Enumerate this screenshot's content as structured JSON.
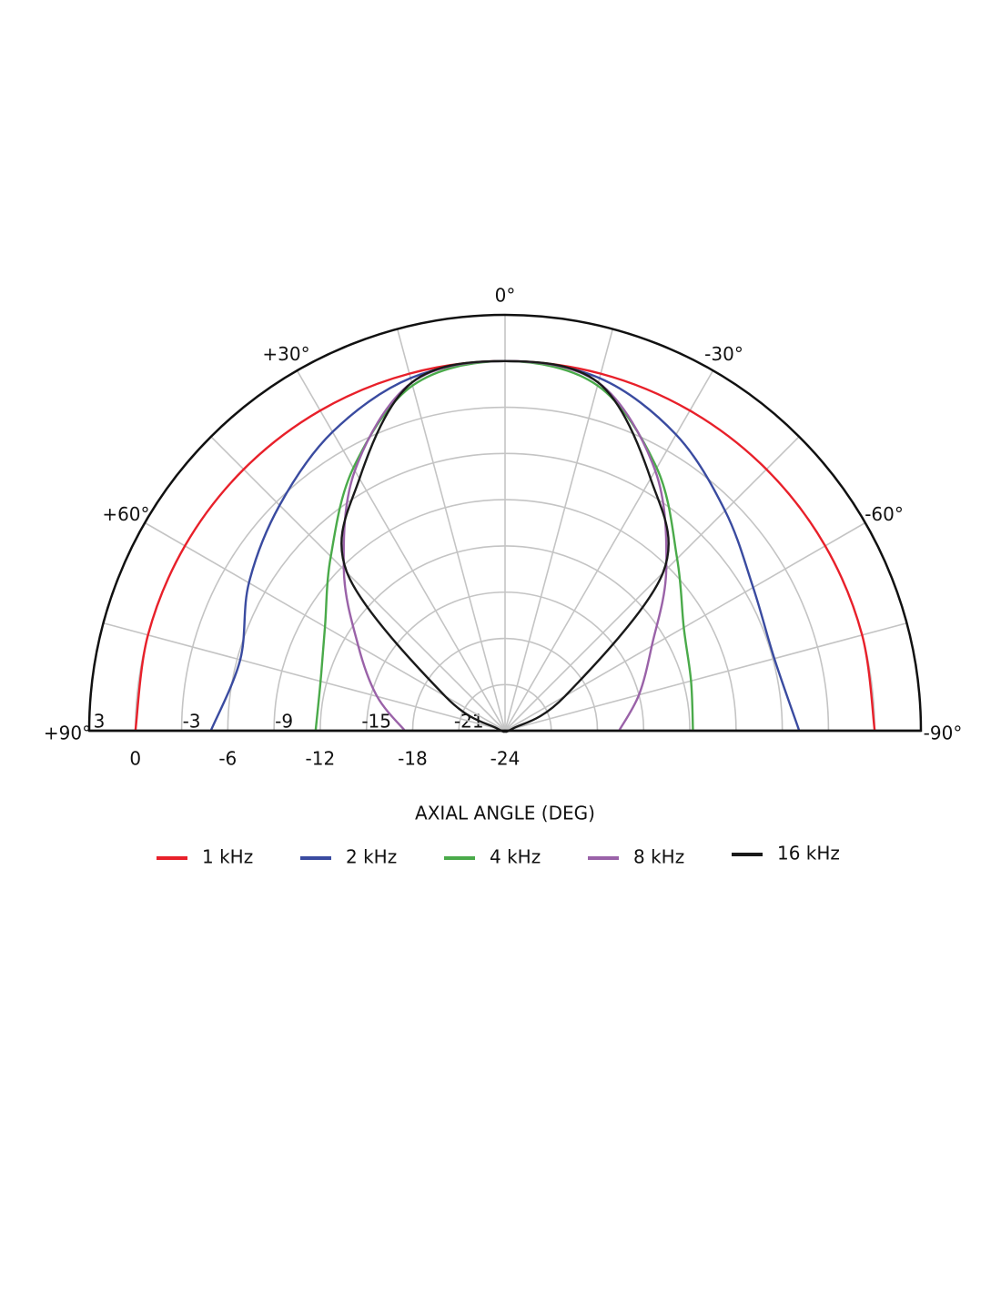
{
  "chart_data": {
    "type": "polar",
    "x_label": "AXIAL ANGLE (DEG)",
    "x": [
      90,
      75,
      60,
      45,
      30,
      15,
      0,
      -15,
      -30,
      -45,
      -60,
      -75,
      -90
    ],
    "xticks": [
      {
        "value": 90,
        "label": "+90°"
      },
      {
        "value": 60,
        "label": "+60°"
      },
      {
        "value": 30,
        "label": "+30°"
      },
      {
        "value": 0,
        "label": "0°"
      },
      {
        "value": -30,
        "label": "-30°"
      },
      {
        "value": -60,
        "label": "-60°"
      },
      {
        "value": -90,
        "label": "-90°"
      }
    ],
    "xlim": [
      90,
      -90
    ],
    "ylim": [
      -24,
      3
    ],
    "yticks": [
      3,
      0,
      -3,
      -6,
      -9,
      -12,
      -15,
      -18,
      -21,
      -24
    ],
    "grid": true,
    "series": [
      {
        "name": "1 kHz",
        "color": "#e8202a",
        "values": [
          0,
          0,
          0,
          0,
          0,
          0,
          0,
          0,
          0,
          0,
          0,
          0,
          0
        ]
      },
      {
        "name": "2 kHz",
        "color": "#3a4ba0",
        "values": [
          -4.9,
          -6.2,
          -4.8,
          -3.3,
          -1.6,
          -0.3,
          0,
          -0.3,
          -1.8,
          -3.8,
          -5.4,
          -5.9,
          -4.9
        ]
      },
      {
        "name": "4 kHz",
        "color": "#4aaa4a",
        "values": [
          -11.7,
          -11.6,
          -10.5,
          -8,
          -4.3,
          -0.8,
          0,
          -0.8,
          -4.3,
          -8.2,
          -10.6,
          -11.5,
          -11.8
        ]
      },
      {
        "name": "8 kHz",
        "color": "#9a62a8",
        "values": [
          -17.5,
          -15.4,
          -13,
          -9.2,
          -4.5,
          -0.6,
          0,
          -0.6,
          -4.5,
          -9.2,
          -13,
          -15,
          -16.6
        ]
      },
      {
        "name": "16 kHz",
        "color": "#1a1a1a",
        "values": [
          -24,
          -23.5,
          -19.5,
          -9.5,
          -5.1,
          -0.6,
          0,
          -0.6,
          -5.1,
          -9.5,
          -19.5,
          -23.5,
          -24
        ]
      }
    ]
  }
}
